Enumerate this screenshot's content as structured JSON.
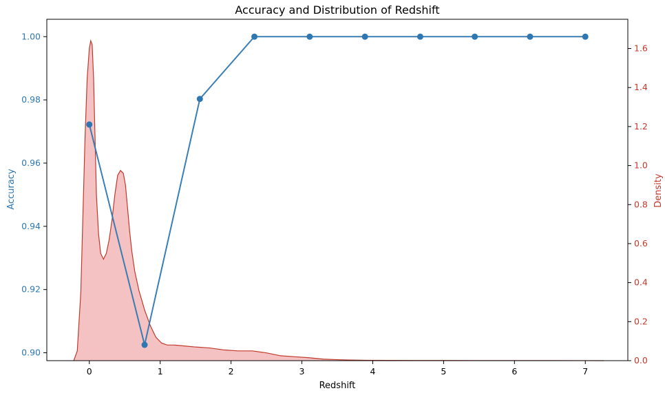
{
  "chart_data": {
    "type": "line",
    "title": "Accuracy and Distribution of Redshift",
    "xlabel": "Redshift",
    "ylabel_left": "Accuracy",
    "ylabel_right": "Density",
    "xlim": [
      -0.6,
      7.6
    ],
    "ylim_left": [
      0.8975,
      1.0055
    ],
    "ylim_right": [
      0.0,
      1.75
    ],
    "x_ticks": [
      "0",
      "1",
      "2",
      "3",
      "4",
      "5",
      "6",
      "7"
    ],
    "y_left_ticks": [
      "0.90",
      "0.92",
      "0.94",
      "0.96",
      "0.98",
      "1.00"
    ],
    "y_right_ticks": [
      "0.0",
      "0.2",
      "0.4",
      "0.6",
      "0.8",
      "1.0",
      "1.2",
      "1.4",
      "1.6"
    ],
    "grid": false,
    "colors": {
      "accuracy": "#2e77b0",
      "density_line": "#c0392b",
      "density_fill": "#f2b7b8",
      "left_axis_text": "#2e77b0",
      "right_axis_text": "#c0392b"
    },
    "series": [
      {
        "axis": "left",
        "kind": "line-with-markers",
        "x": [
          0.0,
          0.78,
          1.56,
          2.33,
          3.11,
          3.89,
          4.67,
          5.44,
          6.22,
          7.0
        ],
        "y": [
          0.9722,
          0.9025,
          0.9803,
          1.0,
          1.0,
          1.0,
          1.0,
          1.0,
          1.0,
          1.0
        ]
      },
      {
        "axis": "right",
        "kind": "kde-area",
        "x": [
          -0.22,
          -0.17,
          -0.12,
          -0.09,
          -0.06,
          -0.03,
          0.0,
          0.02,
          0.04,
          0.06,
          0.08,
          0.1,
          0.13,
          0.16,
          0.2,
          0.24,
          0.28,
          0.32,
          0.36,
          0.4,
          0.44,
          0.48,
          0.51,
          0.54,
          0.57,
          0.6,
          0.64,
          0.7,
          0.78,
          0.86,
          0.94,
          1.02,
          1.1,
          1.2,
          1.35,
          1.5,
          1.7,
          1.9,
          2.1,
          2.3,
          2.5,
          2.7,
          2.9,
          3.1,
          3.3,
          3.5,
          3.7,
          3.9,
          4.2,
          4.6,
          5.0,
          5.5,
          6.0,
          6.5,
          7.0,
          7.26
        ],
        "y": [
          0.0,
          0.05,
          0.35,
          0.75,
          1.15,
          1.45,
          1.6,
          1.64,
          1.62,
          1.45,
          1.15,
          0.85,
          0.65,
          0.55,
          0.52,
          0.55,
          0.62,
          0.72,
          0.85,
          0.95,
          0.975,
          0.96,
          0.9,
          0.78,
          0.66,
          0.56,
          0.46,
          0.36,
          0.26,
          0.18,
          0.12,
          0.09,
          0.08,
          0.08,
          0.075,
          0.07,
          0.065,
          0.055,
          0.05,
          0.05,
          0.04,
          0.025,
          0.02,
          0.015,
          0.008,
          0.005,
          0.003,
          0.002,
          0.0015,
          0.001,
          0.0008,
          0.0006,
          0.0004,
          0.0003,
          0.0002,
          0.0
        ]
      }
    ]
  }
}
